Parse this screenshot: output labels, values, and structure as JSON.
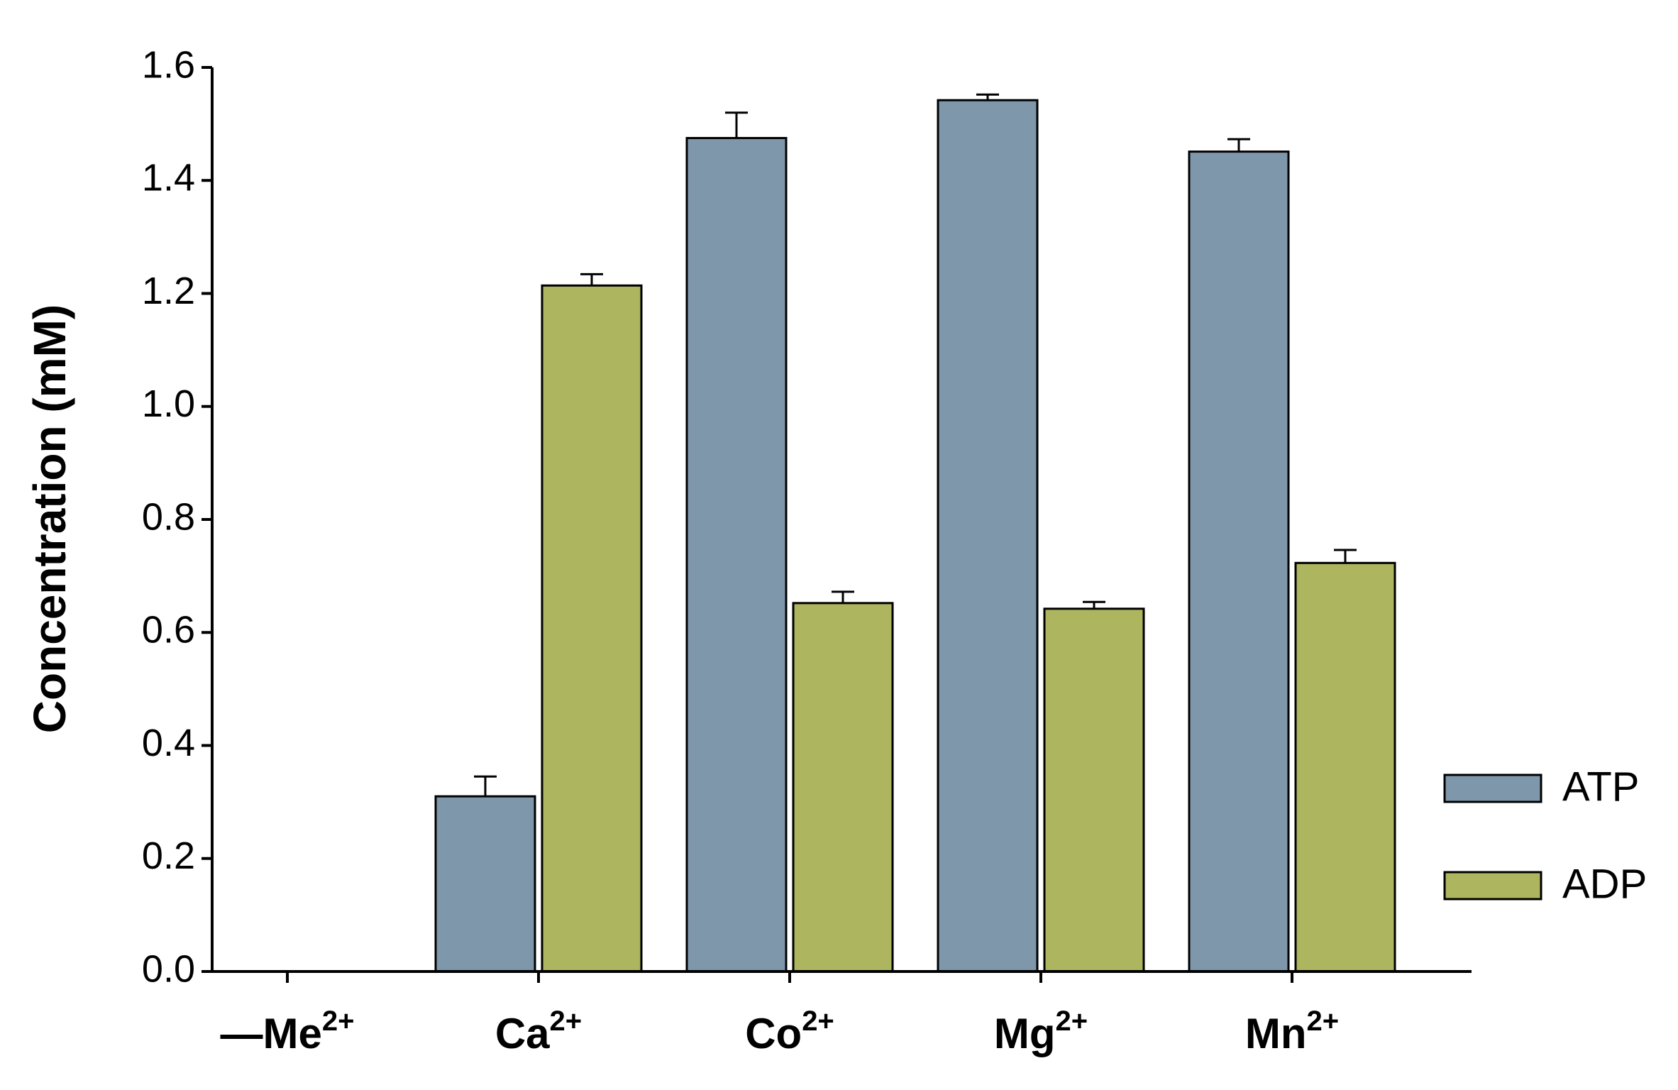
{
  "chart_data": {
    "type": "bar",
    "y_label": "Concentration (mM)",
    "categories": [
      {
        "base": "—Me",
        "sup": "2+"
      },
      {
        "base": "Ca",
        "sup": "2+"
      },
      {
        "base": "Co",
        "sup": "2+"
      },
      {
        "base": "Mg",
        "sup": "2+"
      },
      {
        "base": "Mn",
        "sup": "2+"
      }
    ],
    "series": [
      {
        "name": "ATP",
        "color": "#7f97ab",
        "values": [
          0,
          0.31,
          1.475,
          1.542,
          1.451
        ],
        "errors": [
          0,
          0.035,
          0.045,
          0.01,
          0.022
        ]
      },
      {
        "name": "ADP",
        "color": "#adb55e",
        "values": [
          0,
          1.214,
          0.652,
          0.642,
          0.723
        ],
        "errors": [
          0,
          0.02,
          0.02,
          0.012,
          0.023
        ]
      }
    ],
    "ylim": [
      0,
      1.6
    ],
    "yticks": [
      {
        "value": 0,
        "label": "0.0"
      },
      0.2,
      0.4,
      0.6,
      0.8,
      {
        "value": 1,
        "label": "1.0"
      },
      1.2,
      1.4,
      1.6
    ],
    "legend": "right"
  }
}
